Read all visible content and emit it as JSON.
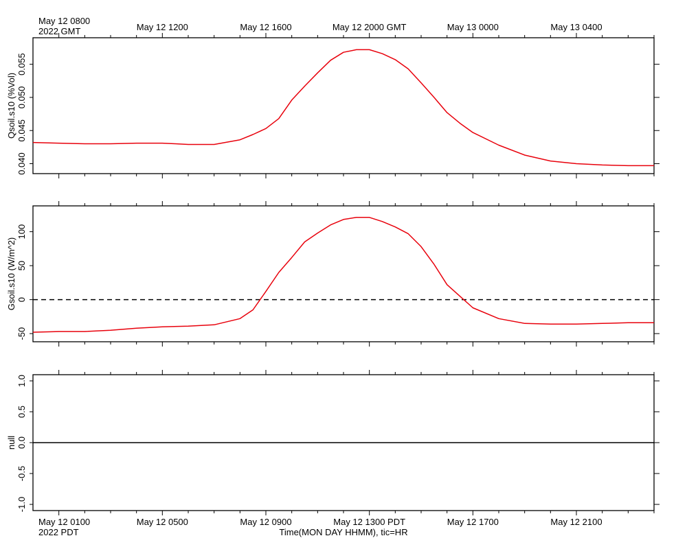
{
  "top_labels": {
    "first_line1": "May 12 0800",
    "first_line2": "2022 GMT",
    "ticks": [
      "May 12 1200",
      "May 12 1600",
      "May 12 2000 GMT",
      "May 13 0000",
      "May 13 0400"
    ]
  },
  "bottom_labels": {
    "first_line1": "May 12 0100",
    "first_line2": "2022 PDT",
    "ticks": [
      "May 12 0500",
      "May 12 0900",
      "May 12 1300 PDT",
      "May 12 1700",
      "May 12 2100"
    ]
  },
  "x_axis_title": "Time(MON DAY HHMM), tic=HR",
  "colors": {
    "series": "#e8000b",
    "axis": "#000000",
    "zero_line": "#000000"
  },
  "chart_data": [
    {
      "type": "line",
      "ylabel": "Qsoil.s10 (%Vol)",
      "ylim": [
        0.0385,
        0.059
      ],
      "yticks": [
        0.04,
        0.045,
        0.05,
        0.055
      ],
      "ytick_labels": [
        "0.040",
        "0.045",
        "0.050",
        "0.055"
      ],
      "x_unit": "hours since May 12 0000 GMT",
      "xlim": [
        7,
        31
      ],
      "x": [
        7,
        8,
        9,
        10,
        11,
        12,
        12.5,
        13,
        14,
        15,
        15.5,
        16,
        16.5,
        17,
        17.5,
        18,
        18.5,
        19,
        19.5,
        20,
        20.5,
        21,
        21.5,
        22,
        22.5,
        23,
        23.5,
        24,
        25,
        26,
        27,
        28,
        29,
        30,
        31
      ],
      "series": [
        {
          "values": [
            0.0432,
            0.0431,
            0.043,
            0.043,
            0.0431,
            0.0431,
            0.043,
            0.0429,
            0.0429,
            0.0436,
            0.0444,
            0.0453,
            0.0468,
            0.0496,
            0.0517,
            0.0537,
            0.0556,
            0.0568,
            0.0572,
            0.0572,
            0.0566,
            0.0557,
            0.0543,
            0.0522,
            0.05,
            0.0477,
            0.0461,
            0.0447,
            0.0428,
            0.0413,
            0.0404,
            0.04,
            0.0398,
            0.0397,
            0.0397
          ]
        }
      ]
    },
    {
      "type": "line",
      "ylabel": "Gsoil.s10 (W/m^2)",
      "ylim": [
        -62,
        138
      ],
      "yticks": [
        -50,
        0,
        50,
        100
      ],
      "ytick_labels": [
        "-50",
        "0",
        "50",
        "100"
      ],
      "x_unit": "hours since May 12 0000 GMT",
      "xlim": [
        7,
        31
      ],
      "x": [
        7,
        8,
        9,
        10,
        11,
        12,
        13,
        14,
        15,
        15.5,
        16,
        16.5,
        17,
        17.5,
        18,
        18.5,
        19,
        19.5,
        20,
        20.5,
        21,
        21.5,
        22,
        22.5,
        23,
        23.5,
        24,
        25,
        26,
        27,
        28,
        29,
        30,
        31
      ],
      "series": [
        {
          "values": [
            -48,
            -47,
            -47,
            -45,
            -42,
            -40,
            -39,
            -37,
            -28,
            -15,
            12,
            40,
            62,
            85,
            98,
            110,
            118,
            121,
            121,
            115,
            107,
            97,
            78,
            52,
            22,
            5,
            -12,
            -28,
            -35,
            -36,
            -36,
            -35,
            -34,
            -34
          ]
        }
      ],
      "reference_line": {
        "y": 0,
        "style": "dashed"
      }
    },
    {
      "type": "line",
      "ylabel": "null",
      "ylim": [
        -1.1,
        1.1
      ],
      "yticks": [
        -1.0,
        -0.5,
        0.0,
        0.5,
        1.0
      ],
      "ytick_labels": [
        "-1.0",
        "-0.5",
        "0.0",
        "0.5",
        "1.0"
      ],
      "x_unit": "hours since May 12 0000 GMT",
      "xlim": [
        7,
        31
      ],
      "x": [
        7,
        31
      ],
      "series": [
        {
          "values": [
            0,
            0
          ]
        }
      ]
    }
  ]
}
